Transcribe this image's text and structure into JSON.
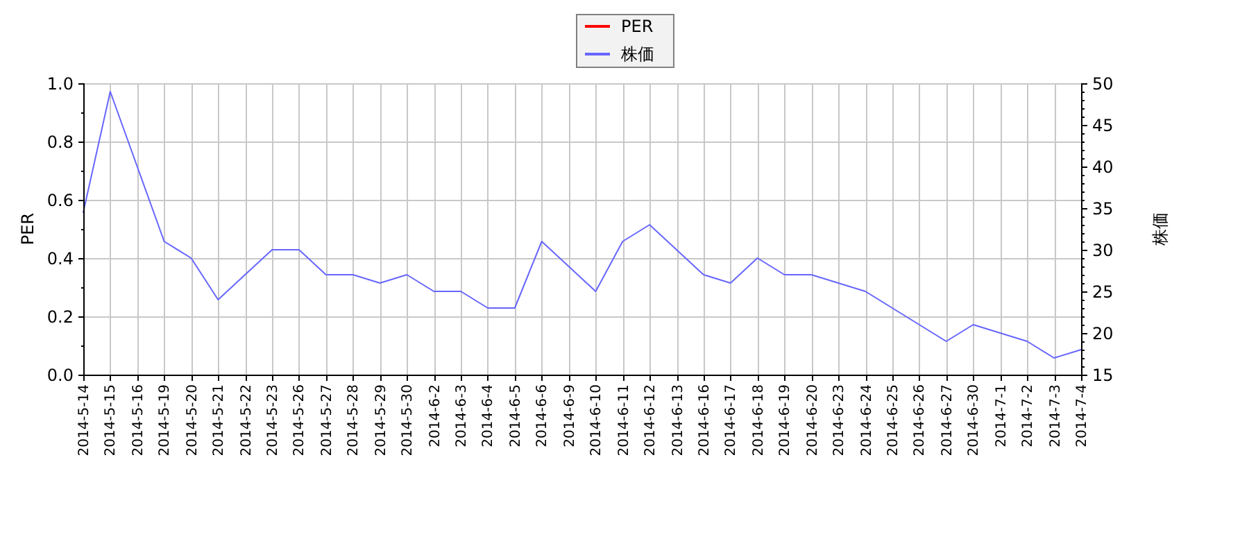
{
  "chart_data": {
    "type": "line",
    "categories": [
      "2014-5-14",
      "2014-5-15",
      "2014-5-16",
      "2014-5-19",
      "2014-5-20",
      "2014-5-21",
      "2014-5-22",
      "2014-5-23",
      "2014-5-26",
      "2014-5-27",
      "2014-5-28",
      "2014-5-29",
      "2014-5-30",
      "2014-6-2",
      "2014-6-3",
      "2014-6-4",
      "2014-6-5",
      "2014-6-6",
      "2014-6-9",
      "2014-6-10",
      "2014-6-11",
      "2014-6-12",
      "2014-6-13",
      "2014-6-16",
      "2014-6-17",
      "2014-6-18",
      "2014-6-19",
      "2014-6-20",
      "2014-6-23",
      "2014-6-24",
      "2014-6-25",
      "2014-6-26",
      "2014-6-27",
      "2014-6-30",
      "2014-7-1",
      "2014-7-2",
      "2014-7-3",
      "2014-7-4"
    ],
    "ylabel": "PER",
    "y2label": "株価",
    "ylim": [
      0,
      1
    ],
    "yticks": [
      {
        "value": 0,
        "label": "0.0"
      },
      {
        "value": 0.1,
        "label": null
      },
      0.2,
      {
        "value": 0.3,
        "label": null
      },
      0.4,
      {
        "value": 0.5,
        "label": null
      },
      0.6,
      {
        "value": 0.7,
        "label": null
      },
      0.8,
      {
        "value": 0.9,
        "label": null
      },
      {
        "value": 1,
        "label": "1.0"
      }
    ],
    "y2lim": [
      15,
      50
    ],
    "y2ticks": [
      15,
      {
        "value": 16,
        "label": null
      },
      {
        "value": 17,
        "label": null
      },
      {
        "value": 18,
        "label": null
      },
      {
        "value": 19,
        "label": null
      },
      20,
      {
        "value": 21,
        "label": null
      },
      {
        "value": 22,
        "label": null
      },
      {
        "value": 23,
        "label": null
      },
      {
        "value": 24,
        "label": null
      },
      25,
      {
        "value": 26,
        "label": null
      },
      {
        "value": 27,
        "label": null
      },
      {
        "value": 28,
        "label": null
      },
      {
        "value": 29,
        "label": null
      },
      30,
      {
        "value": 31,
        "label": null
      },
      {
        "value": 32,
        "label": null
      },
      {
        "value": 33,
        "label": null
      },
      {
        "value": 34,
        "label": null
      },
      35,
      {
        "value": 36,
        "label": null
      },
      {
        "value": 37,
        "label": null
      },
      {
        "value": 38,
        "label": null
      },
      {
        "value": 39,
        "label": null
      },
      40,
      {
        "value": 41,
        "label": null
      },
      {
        "value": 42,
        "label": null
      },
      {
        "value": 43,
        "label": null
      },
      {
        "value": 44,
        "label": null
      },
      45,
      {
        "value": 46,
        "label": null
      },
      {
        "value": 47,
        "label": null
      },
      {
        "value": 48,
        "label": null
      },
      {
        "value": 49,
        "label": null
      },
      50
    ],
    "grid": true,
    "legend": "top",
    "series": [
      {
        "name": "PER",
        "color": "#ff0000",
        "values": [
          null,
          null,
          null,
          null,
          null,
          null,
          null,
          null,
          null,
          null,
          null,
          null,
          null,
          null,
          null,
          null,
          null,
          null,
          null,
          null,
          null,
          null,
          null,
          null,
          null,
          null,
          null,
          null,
          null,
          null,
          null,
          null,
          null,
          null,
          null,
          null,
          null,
          null
        ]
      },
      {
        "name": "株価",
        "color": "#6666ff",
        "axis": "y2",
        "values": [
          34.5,
          49,
          40,
          31,
          29,
          24,
          27,
          30,
          30,
          27,
          27,
          26,
          27,
          25,
          25,
          23,
          23,
          31,
          28,
          25,
          31,
          33,
          30,
          27,
          26,
          29,
          27,
          27,
          26,
          25,
          23,
          21,
          19,
          21,
          20,
          19,
          17,
          18
        ]
      }
    ]
  }
}
